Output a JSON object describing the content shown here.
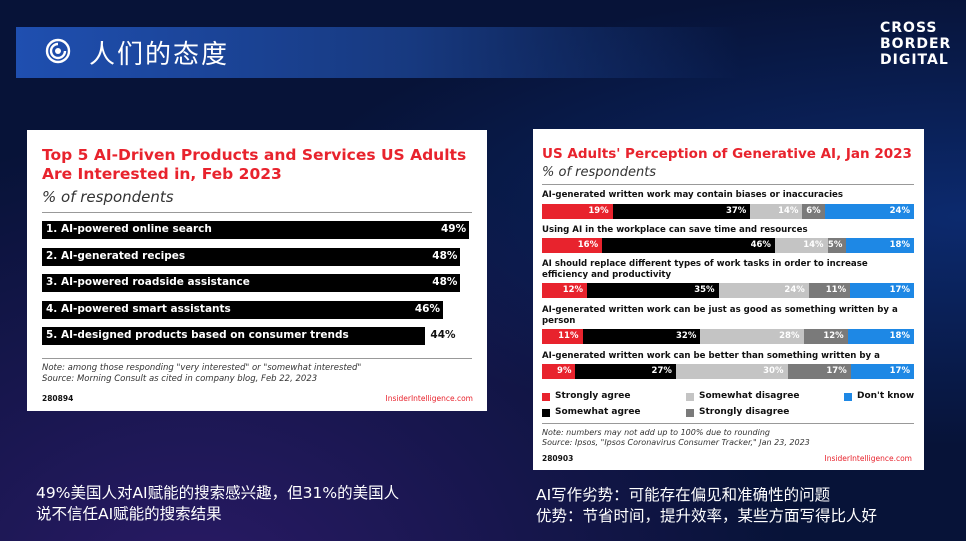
{
  "slide": {
    "title": "人们的态度",
    "logo": [
      "CROSS",
      "BORDER",
      "DIGITAL"
    ],
    "icon": "swirl-icon"
  },
  "colors": {
    "strongly_agree": "#e8232d",
    "somewhat_agree": "#000000",
    "somewhat_disagree": "#c4c4c4",
    "strongly_disagree": "#7a7a7a",
    "dont_know": "#1e88e5"
  },
  "chart_data": [
    {
      "type": "bar",
      "title": "Top 5 AI-Driven Products and Services US Adults Are Interested in, Feb 2023",
      "subtitle": "% of respondents",
      "categories": [
        "1. AI-powered online search",
        "2. AI-generated recipes",
        "3. AI-powered roadside assistance",
        "4. AI-powered smart assistants",
        "5. AI-designed products based on consumer trends"
      ],
      "values": [
        49,
        48,
        48,
        46,
        44
      ],
      "value_labels": [
        "49%",
        "48%",
        "48%",
        "46%",
        "44%"
      ],
      "xlim": [
        0,
        49
      ],
      "note": "Note: among those responding \"very interested\" or \"somewhat interested\"",
      "source": "Source: Morning Consult as cited in company blog, Feb 22, 2023",
      "code": "280894",
      "brand": "InsiderIntelligence.com"
    },
    {
      "type": "bar",
      "stacked": true,
      "title": "US Adults' Perception of Generative AI, Jan 2023",
      "subtitle": "% of respondents",
      "categories": [
        "AI-generated written work may contain biases or inaccuracies",
        "Using AI in the workplace can save time and resources",
        "AI should replace different types of work tasks in order to increase efficiency and productivity",
        "AI-generated written work can be just as good as something written by a person",
        "AI-generated written work can be better than something written by a person"
      ],
      "series": [
        {
          "name": "Strongly agree",
          "values": [
            19,
            16,
            12,
            11,
            9
          ]
        },
        {
          "name": "Somewhat agree",
          "values": [
            37,
            46,
            35,
            32,
            27
          ]
        },
        {
          "name": "Somewhat disagree",
          "values": [
            14,
            14,
            24,
            28,
            30
          ]
        },
        {
          "name": "Strongly disagree",
          "values": [
            6,
            5,
            11,
            12,
            17
          ]
        },
        {
          "name": "Don't know",
          "values": [
            24,
            18,
            17,
            18,
            17
          ]
        }
      ],
      "legend": [
        "Strongly agree",
        "Somewhat disagree",
        "Don't know",
        "Somewhat agree",
        "Strongly disagree"
      ],
      "legend_position": "bottom",
      "note": "Note: numbers may not add up to 100% due to rounding",
      "source": "Source: Ipsos, \"Ipsos Coronavirus Consumer Tracker,\" Jan 23, 2023",
      "code": "280903",
      "brand": "InsiderIntelligence.com"
    }
  ],
  "captions": {
    "left": [
      "49%美国人对AI赋能的搜索感兴趣，但31%的美国人",
      "说不信任AI赋能的搜索结果"
    ],
    "right": [
      "AI写作劣势：可能存在偏见和准确性的问题",
      "优势：节省时间，提升效率，某些方面写得比人好"
    ]
  }
}
